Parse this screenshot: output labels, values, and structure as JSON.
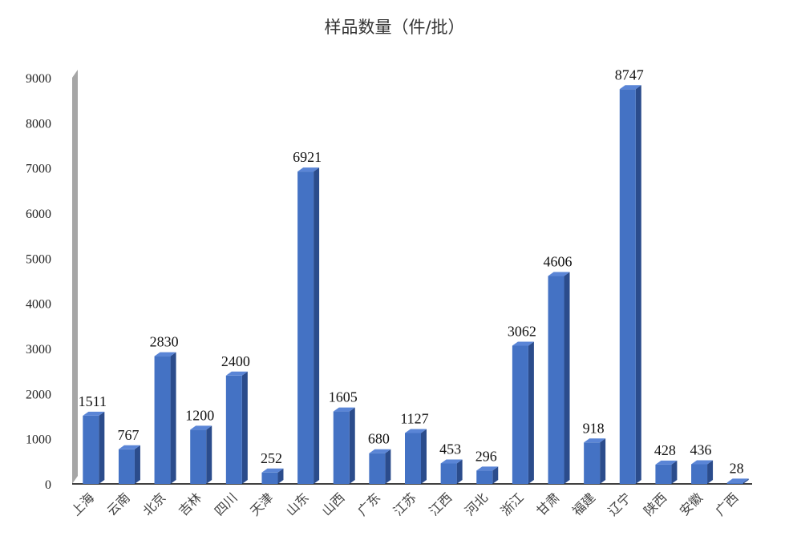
{
  "chart_data": {
    "type": "bar",
    "title": "样品数量（件/批）",
    "xlabel": "",
    "ylabel": "",
    "categories": [
      "上海",
      "云南",
      "北京",
      "吉林",
      "四川",
      "天津",
      "山东",
      "山西",
      "广东",
      "江苏",
      "江西",
      "河北",
      "浙江",
      "甘肃",
      "福建",
      "辽宁",
      "陕西",
      "安徽",
      "广西"
    ],
    "values": [
      1511,
      767,
      2830,
      1200,
      2400,
      252,
      6921,
      1605,
      680,
      1127,
      453,
      296,
      3062,
      4606,
      918,
      8747,
      428,
      436,
      28
    ],
    "ylim": [
      0,
      9000
    ],
    "yticks": [
      0,
      1000,
      2000,
      3000,
      4000,
      5000,
      6000,
      7000,
      8000,
      9000
    ],
    "grid": false,
    "legend": "none",
    "colors": {
      "bar_front": "#4472C4",
      "bar_side": "#2B4C8C",
      "bar_top": "#5A85D6",
      "wall": "#A6A6A6"
    }
  }
}
